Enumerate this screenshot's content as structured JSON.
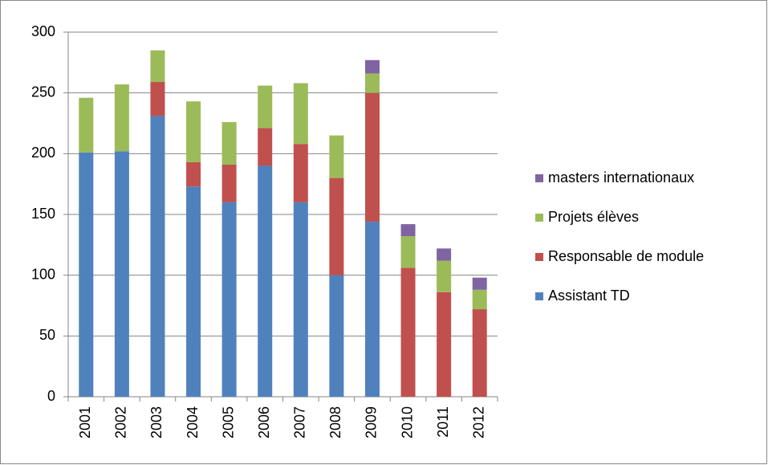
{
  "chart_data": {
    "type": "stacked_bar",
    "categories": [
      "2001",
      "2002",
      "2003",
      "2004",
      "2005",
      "2006",
      "2007",
      "2008",
      "2009",
      "2010",
      "2011",
      "2012"
    ],
    "series": [
      {
        "name": "Assistant TD",
        "color": "#4f81bd",
        "values": [
          201,
          202,
          231,
          173,
          160,
          190,
          160,
          100,
          144,
          0,
          0,
          0
        ]
      },
      {
        "name": "Responsable de module",
        "color": "#c0504d",
        "values": [
          0,
          0,
          28,
          20,
          31,
          31,
          48,
          80,
          106,
          106,
          86,
          72
        ]
      },
      {
        "name": "Projets élèves",
        "color": "#9bbb59",
        "values": [
          45,
          55,
          26,
          50,
          35,
          35,
          50,
          35,
          16,
          26,
          26,
          16
        ]
      },
      {
        "name": "masters internationaux",
        "color": "#8064a2",
        "values": [
          0,
          0,
          0,
          0,
          0,
          0,
          0,
          0,
          11,
          10,
          10,
          10
        ]
      }
    ],
    "ylim": [
      0,
      300
    ],
    "yticks": [
      0,
      50,
      100,
      150,
      200,
      250,
      300
    ],
    "grid": true,
    "legend": "right"
  }
}
